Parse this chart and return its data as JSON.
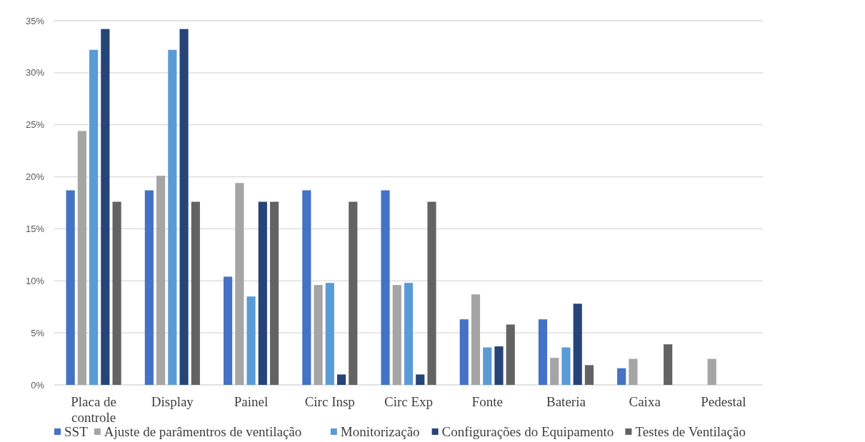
{
  "chart_data": {
    "type": "bar",
    "categories": [
      "Placa de controle",
      "Display",
      "Painel",
      "Circ Insp",
      "Circ Exp",
      "Fonte",
      "Bateria",
      "Caixa",
      "Pedestal"
    ],
    "series": [
      {
        "name": "SST",
        "color": "#4472c4",
        "values": [
          18.7,
          18.7,
          10.4,
          18.7,
          18.7,
          6.3,
          6.3,
          1.6,
          0
        ]
      },
      {
        "name": "Ajuste de parâmentros de ventilação",
        "color": "#a5a5a5",
        "values": [
          24.4,
          20.1,
          19.4,
          9.6,
          9.6,
          8.7,
          2.6,
          2.5,
          2.5
        ]
      },
      {
        "name": "Monitorização",
        "color": "#5b9bd5",
        "values": [
          32.2,
          32.2,
          8.5,
          9.8,
          9.8,
          3.6,
          3.6,
          0,
          0
        ]
      },
      {
        "name": "Configurações do Equipamento",
        "color": "#264478",
        "values": [
          34.2,
          34.2,
          17.6,
          1.0,
          1.0,
          3.7,
          7.8,
          0,
          0
        ]
      },
      {
        "name": "Testes de Ventilação",
        "color": "#636363",
        "values": [
          17.6,
          17.6,
          17.6,
          17.6,
          17.6,
          5.8,
          1.9,
          3.9,
          0
        ]
      }
    ],
    "ylim": [
      0,
      35
    ],
    "yticks": [
      {
        "value": 0,
        "label": "0%"
      },
      {
        "value": 5,
        "label": "5%"
      },
      {
        "value": 10,
        "label": "10%"
      },
      {
        "value": 15,
        "label": "15%"
      },
      {
        "value": 20,
        "label": "20%"
      },
      {
        "value": 25,
        "label": "25%"
      },
      {
        "value": 30,
        "label": "30%"
      },
      {
        "value": 35,
        "label": "35%"
      }
    ],
    "grid": "y",
    "legend": "bottom"
  }
}
